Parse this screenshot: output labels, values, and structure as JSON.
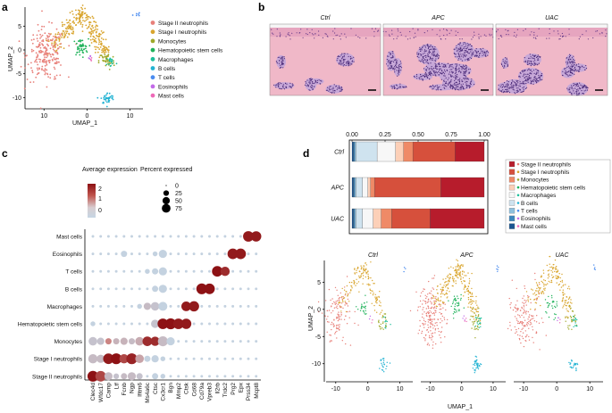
{
  "panels": {
    "a": "a",
    "b": "b",
    "c": "c",
    "d": "d"
  },
  "colors": {
    "stage2": "#e8807a",
    "stage1": "#d9a52e",
    "mono": "#9ea829",
    "hsc": "#1fb25a",
    "macro": "#1dbf9a",
    "bcell": "#23b3d3",
    "tcell": "#4a8cf0",
    "eos": "#c36be8",
    "mast": "#ee6ab8"
  },
  "legend": {
    "items": [
      {
        "label": "Stage II neutrophils",
        "color": "#e8807a"
      },
      {
        "label": "Stage I neutrophils",
        "color": "#d9a52e"
      },
      {
        "label": "Monocytes",
        "color": "#9ea829"
      },
      {
        "label": "Hematopoietic stem cells",
        "color": "#1fb25a"
      },
      {
        "label": "Macrophages",
        "color": "#1dbf9a"
      },
      {
        "label": "B cells",
        "color": "#23b3d3"
      },
      {
        "label": "T cells",
        "color": "#4a8cf0"
      },
      {
        "label": "Eosinophils",
        "color": "#c36be8"
      },
      {
        "label": "Mast cells",
        "color": "#ee6ab8"
      }
    ]
  },
  "umap_a": {
    "xlabel": "UMAP_1",
    "ylabel": "UMAP_2",
    "xticks": [
      "10",
      "0",
      "10"
    ],
    "yticks": [
      "5",
      "0",
      "-5",
      "-10"
    ]
  },
  "histology": {
    "titles": [
      "Ctrl",
      "APC",
      "UAC"
    ]
  },
  "stack_legend": {
    "items": [
      {
        "label": "Stage II neutrophils",
        "color": "#b71c2c"
      },
      {
        "label": "Stage I neutrophils",
        "color": "#d6503c"
      },
      {
        "label": "Monocytes",
        "color": "#ef8a67"
      },
      {
        "label": "Hematopoietic stem cells",
        "color": "#fcd0b8"
      },
      {
        "label": "Macrophages",
        "color": "#f7f7f7"
      },
      {
        "label": "B cells",
        "color": "#cfe3ef"
      },
      {
        "label": "T cells",
        "color": "#8ec0dd"
      },
      {
        "label": "Eosinophils",
        "color": "#3c86be"
      },
      {
        "label": "Mast cells",
        "color": "#1b5591"
      }
    ]
  },
  "umap_d": {
    "titles": [
      "Ctrl",
      "APC",
      "UAC"
    ],
    "xlabel": "UMAP_1",
    "ylabel": "UMAP_2",
    "xticks": [
      "-10",
      "0",
      "10"
    ],
    "yticks": [
      "5",
      "0",
      "-5",
      "-10"
    ]
  },
  "chart_data": [
    {
      "type": "bar",
      "orientation": "horizontal",
      "stacked": true,
      "title": "",
      "categories": [
        "Ctrl",
        "APC",
        "UAC"
      ],
      "xticks": [
        "0.00",
        "0.25",
        "0.50",
        "0.75",
        "1.00"
      ],
      "xlim": [
        0,
        1
      ],
      "series": [
        {
          "name": "Mast cells",
          "values": [
            0.01,
            0.01,
            0.01
          ]
        },
        {
          "name": "Eosinophils",
          "values": [
            0.01,
            0.01,
            0.01
          ]
        },
        {
          "name": "T cells",
          "values": [
            0.01,
            0.01,
            0.01
          ]
        },
        {
          "name": "B cells",
          "values": [
            0.16,
            0.05,
            0.05
          ]
        },
        {
          "name": "Macrophages",
          "values": [
            0.14,
            0.04,
            0.08
          ]
        },
        {
          "name": "Hematopoietic stem cells",
          "values": [
            0.06,
            0.02,
            0.06
          ]
        },
        {
          "name": "Monocytes",
          "values": [
            0.07,
            0.03,
            0.08
          ]
        },
        {
          "name": "Stage I neutrophils",
          "values": [
            0.32,
            0.5,
            0.29
          ]
        },
        {
          "name": "Stage II neutrophils",
          "values": [
            0.22,
            0.33,
            0.41
          ]
        }
      ]
    },
    {
      "type": "dotplot",
      "title": "",
      "rows": [
        "Mast cells",
        "Eosinophils",
        "T cells",
        "B cells",
        "Macrophages",
        "Hematopoietic stem cells",
        "Monocytes",
        "Stage I neutrophils",
        "Stage II neutrophils"
      ],
      "genes": [
        "Clec4d",
        "Wfdc17",
        "Camp",
        "Ltf",
        "Fcnb",
        "Ngp",
        "Ifitm6",
        "Ms4a6c",
        "Ctsc",
        "Cx3cr1",
        "Bgn",
        "Mmp2",
        "Ctsk",
        "Cd68",
        "Cd79a",
        "Vpreb3",
        "Il2rb",
        "Trdc2",
        "Prg2",
        "Epx",
        "Prss34",
        "Mcpt8"
      ],
      "color_legend": {
        "title": "Average expression",
        "ticks": [
          "2",
          "1",
          "0"
        ]
      },
      "size_legend": {
        "title": "Percent expressed",
        "ticks": [
          "0",
          "25",
          "50",
          "75"
        ]
      },
      "values": [
        [
          [
            1,
            0
          ],
          [
            1,
            0
          ],
          [
            1,
            0
          ],
          [
            1,
            0
          ],
          [
            1,
            0
          ],
          [
            1,
            0
          ],
          [
            1,
            0
          ],
          [
            1,
            0
          ],
          [
            1,
            0
          ],
          [
            1,
            0
          ],
          [
            1,
            0
          ],
          [
            1,
            0
          ],
          [
            1,
            0
          ],
          [
            1,
            0
          ],
          [
            1,
            0
          ],
          [
            1,
            0
          ],
          [
            1,
            0
          ],
          [
            1,
            0
          ],
          [
            1,
            0
          ],
          [
            1,
            0
          ],
          [
            75,
            2.2
          ],
          [
            70,
            2.2
          ]
        ],
        [
          [
            1,
            0
          ],
          [
            1,
            0
          ],
          [
            1,
            0
          ],
          [
            1,
            0
          ],
          [
            20,
            0
          ],
          [
            1,
            0
          ],
          [
            1,
            0
          ],
          [
            1,
            0
          ],
          [
            10,
            0
          ],
          [
            40,
            0
          ],
          [
            1,
            0
          ],
          [
            1,
            0
          ],
          [
            1,
            0
          ],
          [
            1,
            0
          ],
          [
            1,
            0
          ],
          [
            1,
            0
          ],
          [
            1,
            0
          ],
          [
            1,
            0
          ],
          [
            75,
            2.2
          ],
          [
            75,
            2.2
          ],
          [
            1,
            0
          ],
          [
            1,
            0
          ]
        ],
        [
          [
            1,
            0
          ],
          [
            1,
            0
          ],
          [
            1,
            0
          ],
          [
            1,
            0
          ],
          [
            1,
            0
          ],
          [
            1,
            0
          ],
          [
            1,
            0
          ],
          [
            10,
            0
          ],
          [
            20,
            0
          ],
          [
            40,
            0
          ],
          [
            1,
            0
          ],
          [
            1,
            0
          ],
          [
            1,
            0
          ],
          [
            1,
            0
          ],
          [
            1,
            0
          ],
          [
            1,
            0
          ],
          [
            75,
            2.3
          ],
          [
            55,
            2.0
          ],
          [
            1,
            0
          ],
          [
            1,
            0
          ],
          [
            1,
            0
          ],
          [
            1,
            0
          ]
        ],
        [
          [
            1,
            0
          ],
          [
            1,
            0
          ],
          [
            1,
            0
          ],
          [
            1,
            0
          ],
          [
            1,
            0
          ],
          [
            1,
            0
          ],
          [
            1,
            0
          ],
          [
            1,
            0
          ],
          [
            20,
            0
          ],
          [
            40,
            0
          ],
          [
            1,
            0
          ],
          [
            1,
            0
          ],
          [
            1,
            0
          ],
          [
            1,
            0
          ],
          [
            78,
            2.3
          ],
          [
            75,
            2.3
          ],
          [
            1,
            0
          ],
          [
            1,
            0
          ],
          [
            1,
            0
          ],
          [
            1,
            0
          ],
          [
            1,
            0
          ],
          [
            1,
            0
          ]
        ],
        [
          [
            1,
            0
          ],
          [
            1,
            0
          ],
          [
            1,
            0
          ],
          [
            1,
            0
          ],
          [
            1,
            0
          ],
          [
            1,
            0
          ],
          [
            10,
            0
          ],
          [
            30,
            0.3
          ],
          [
            45,
            0.2
          ],
          [
            50,
            0
          ],
          [
            1,
            0
          ],
          [
            1,
            0
          ],
          [
            60,
            2.2
          ],
          [
            70,
            2.2
          ],
          [
            1,
            0
          ],
          [
            1,
            0
          ],
          [
            1,
            0
          ],
          [
            1,
            0
          ],
          [
            1,
            0
          ],
          [
            1,
            0
          ],
          [
            1,
            0
          ],
          [
            1,
            0
          ]
        ],
        [
          [
            10,
            0
          ],
          [
            1,
            0
          ],
          [
            1,
            0
          ],
          [
            1,
            0
          ],
          [
            1,
            0
          ],
          [
            1,
            0
          ],
          [
            1,
            0
          ],
          [
            1,
            0
          ],
          [
            40,
            0.2
          ],
          [
            75,
            2.3
          ],
          [
            80,
            2.3
          ],
          [
            75,
            2.2
          ],
          [
            70,
            2.2
          ],
          [
            1,
            0
          ],
          [
            1,
            0
          ],
          [
            1,
            0
          ],
          [
            1,
            0
          ],
          [
            1,
            0
          ],
          [
            1,
            0
          ],
          [
            1,
            0
          ],
          [
            1,
            0
          ],
          [
            1,
            0
          ]
        ],
        [
          [
            45,
            0.2
          ],
          [
            30,
            0.2
          ],
          [
            20,
            1.0
          ],
          [
            20,
            0.4
          ],
          [
            30,
            0.4
          ],
          [
            20,
            0.3
          ],
          [
            45,
            0.5
          ],
          [
            60,
            2.0
          ],
          [
            55,
            2.0
          ],
          [
            65,
            0.3
          ],
          [
            40,
            0
          ],
          [
            1,
            0
          ],
          [
            1,
            0
          ],
          [
            1,
            0
          ],
          [
            1,
            0
          ],
          [
            1,
            0
          ],
          [
            1,
            0
          ],
          [
            1,
            0
          ],
          [
            1,
            0
          ],
          [
            1,
            0
          ],
          [
            1,
            0
          ],
          [
            1,
            0
          ]
        ],
        [
          [
            55,
            0.3
          ],
          [
            40,
            0.3
          ],
          [
            75,
            2.2
          ],
          [
            80,
            2.3
          ],
          [
            55,
            1.7
          ],
          [
            80,
            2.1
          ],
          [
            45,
            0.6
          ],
          [
            20,
            0
          ],
          [
            30,
            0
          ],
          [
            10,
            0
          ],
          [
            1,
            0
          ],
          [
            1,
            0
          ],
          [
            1,
            0
          ],
          [
            1,
            0
          ],
          [
            1,
            0
          ],
          [
            1,
            0
          ],
          [
            1,
            0
          ],
          [
            1,
            0
          ],
          [
            1,
            0
          ],
          [
            1,
            0
          ],
          [
            1,
            0
          ],
          [
            1,
            0
          ]
        ],
        [
          [
            80,
            2.3
          ],
          [
            75,
            1.7
          ],
          [
            40,
            0.3
          ],
          [
            15,
            0.2
          ],
          [
            20,
            0.3
          ],
          [
            40,
            0.3
          ],
          [
            20,
            0.2
          ],
          [
            1,
            0
          ],
          [
            20,
            0
          ],
          [
            10,
            0
          ],
          [
            1,
            0
          ],
          [
            1,
            0
          ],
          [
            1,
            0
          ],
          [
            1,
            0
          ],
          [
            1,
            0
          ],
          [
            1,
            0
          ],
          [
            1,
            0
          ],
          [
            1,
            0
          ],
          [
            1,
            0
          ],
          [
            1,
            0
          ],
          [
            1,
            0
          ],
          [
            1,
            0
          ]
        ]
      ]
    }
  ]
}
